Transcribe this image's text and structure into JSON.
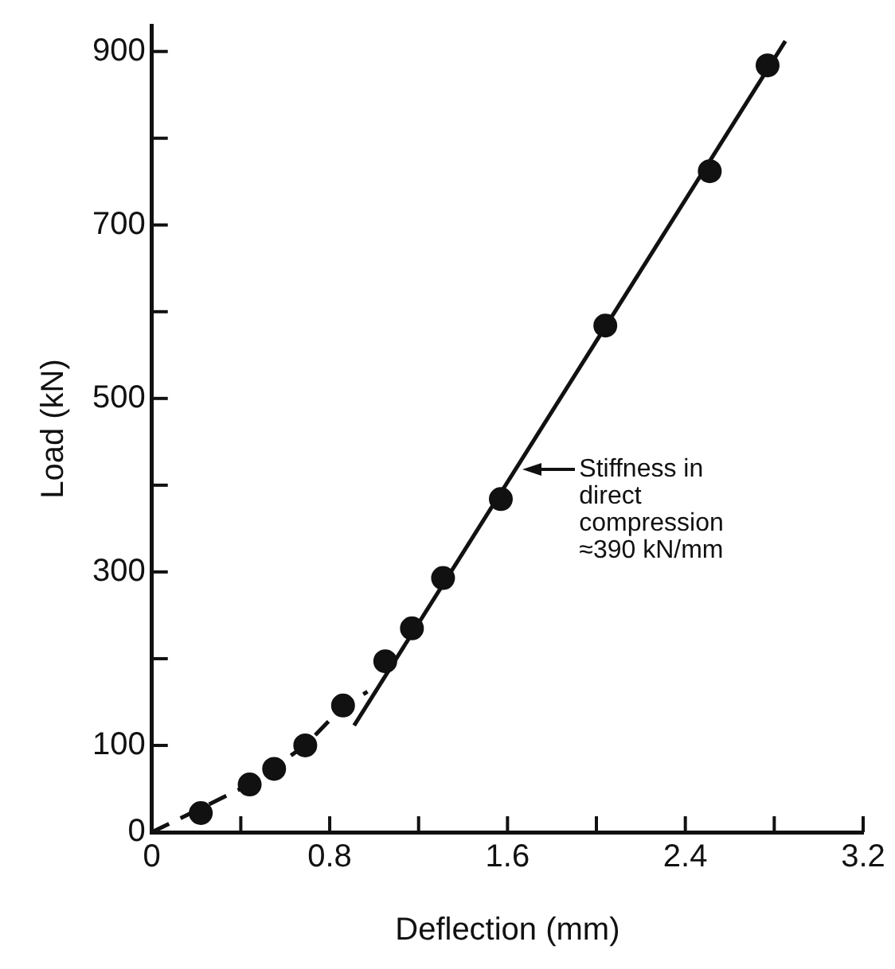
{
  "chart_data": {
    "type": "scatter",
    "xlabel": "Deflection (mm)",
    "ylabel": "Load (kN)",
    "xlim": [
      0,
      3.2
    ],
    "ylim": [
      0,
      930
    ],
    "xticks": [
      0,
      {
        "value": 0.4,
        "label": null
      },
      0.8,
      {
        "value": 1.2,
        "label": null
      },
      1.6,
      {
        "value": 2.0,
        "label": null
      },
      2.4,
      {
        "value": 2.8,
        "label": null
      },
      3.2
    ],
    "yticks": [
      0,
      100,
      {
        "value": 200,
        "label": null
      },
      300,
      {
        "value": 400,
        "label": null
      },
      500,
      {
        "value": 600,
        "label": null
      },
      700,
      {
        "value": 800,
        "label": null
      },
      900
    ],
    "series": [
      {
        "color": "#111111",
        "marker": "circle",
        "x": [
          0.22,
          0.44,
          0.55,
          0.69,
          0.86,
          1.05,
          1.17,
          1.31,
          1.57,
          2.04,
          2.51,
          2.77
        ],
        "values": [
          22,
          55,
          73,
          100,
          146,
          197,
          235,
          293,
          384,
          584,
          762,
          884
        ]
      },
      {
        "type": "line",
        "color": "#111111",
        "line_style": "dashed",
        "marker": "none",
        "x": [
          0,
          0.44,
          0.69,
          0.86,
          0.97
        ],
        "values": [
          0,
          55,
          100,
          145,
          162
        ]
      },
      {
        "type": "line",
        "color": "#111111",
        "line_style": "solid",
        "marker": "none",
        "x": [
          0.91,
          2.85
        ],
        "values": [
          123,
          912
        ]
      }
    ],
    "annotations": [
      {
        "text": "Stiffness in\ndirect\ncompression\n≈390 kN/mm",
        "x": 1.65,
        "y": 418
      }
    ],
    "grid": false,
    "legend": false
  }
}
